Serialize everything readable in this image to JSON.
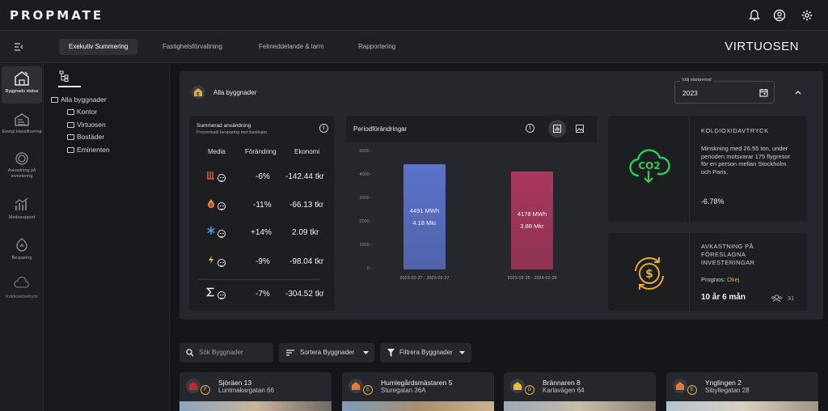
{
  "app": {
    "logo": "PROPMATE",
    "brand": "VIRTUOSEN"
  },
  "nav": {
    "tabs": [
      "Exekutiv Summering",
      "Fastighetsförvaltning",
      "Felmeddelande & larm",
      "Rapportering"
    ],
    "active": 0
  },
  "rail": [
    {
      "label": "Byggnads status",
      "icon": "building-status-icon",
      "active": true
    },
    {
      "label": "Energi klassificering",
      "icon": "energy-class-icon",
      "active": false
    },
    {
      "label": "Avkastning på investering",
      "icon": "roi-icon",
      "active": false
    },
    {
      "label": "Mediarapport",
      "icon": "media-report-icon",
      "active": false
    },
    {
      "label": "Besparing",
      "icon": "savings-icon",
      "active": false
    },
    {
      "label": "Koldioxidavtryck",
      "icon": "co2-icon",
      "active": false
    }
  ],
  "tree": {
    "root": "Alla byggnader",
    "children": [
      "Kontor",
      "Virtuosen",
      "Bostäder",
      "Eminenten"
    ]
  },
  "overview": {
    "title": "Alla byggnader",
    "period_label": "Välj startperiod",
    "period_value": "2023"
  },
  "summary": {
    "title": "Summerad användning",
    "subtitle": "Procentuell besparing mot baslinjen",
    "headers": [
      "Media",
      "Förändring",
      "Ekonomi"
    ],
    "rows": [
      {
        "icon": "heating-icon",
        "change": "-6%",
        "economy": "-142.44 tkr"
      },
      {
        "icon": "water-icon",
        "change": "-11%",
        "economy": "-66.13 tkr"
      },
      {
        "icon": "cooling-icon",
        "change": "+14%",
        "economy": "2.09 tkr"
      },
      {
        "icon": "electricity-icon",
        "change": "-9%",
        "economy": "-98.04 tkr"
      },
      {
        "icon": "sum-icon",
        "change": "-7%",
        "economy": "-304.52 tkr"
      }
    ]
  },
  "period_chart": {
    "title": "Periodförändringar",
    "colors": {
      "bar1": "#5b72c9",
      "bar2": "#a8375c"
    }
  },
  "chart_data": {
    "type": "bar",
    "title": "Periodförändringar",
    "categories": [
      "2023-02-27 - 2023-02-27",
      "2023-02-28 - 2024-02-29"
    ],
    "values": [
      4491,
      4178
    ],
    "value_labels": [
      [
        "4491 MWh",
        "4.18 Mkr"
      ],
      [
        "4178 MWh",
        "3.88 Mkr"
      ]
    ],
    "yticks": [
      0,
      1000,
      2000,
      3000,
      4000,
      5000
    ],
    "ylim": [
      0,
      5000
    ],
    "grid": false
  },
  "co2": {
    "title": "KOLDIOXIDAVTRYCK",
    "text": "Minskning med 26.55 ton, under perioden motsvarar 175 flygresor för en person mellan Stockholm och Paris.",
    "value": "-6.78%",
    "icon_text": "CO2",
    "color": "#2ecc52"
  },
  "roi": {
    "title": "AVKASTNING PÅ FÖRESLAGNA INVESTERINGAR",
    "prognos_label": "Prognos:",
    "prognos_value": "Okej",
    "duration": "10 år 6 mån",
    "count": "31",
    "color": "#e8a93a"
  },
  "filters": {
    "search_placeholder": "Sök Byggnader",
    "sort_label": "Sortera Byggnader",
    "filter_label": "Filtrera Byggnader"
  },
  "buildings": [
    {
      "name": "Sjöräen 13",
      "address": "Luntmakargatan 66",
      "class": "F",
      "badge_color": "#c0282d"
    },
    {
      "name": "Humlegårdsmästaren 5",
      "address": "Sturegatan 36A",
      "class": "E",
      "badge_color": "#e8792a"
    },
    {
      "name": "Brännaren 8",
      "address": "Karlavägen 64",
      "class": "D",
      "badge_color": "#e8c22a"
    },
    {
      "name": "Ynglingen 2",
      "address": "Sibyllegatan 28",
      "class": "E",
      "badge_color": "#e8792a"
    }
  ]
}
